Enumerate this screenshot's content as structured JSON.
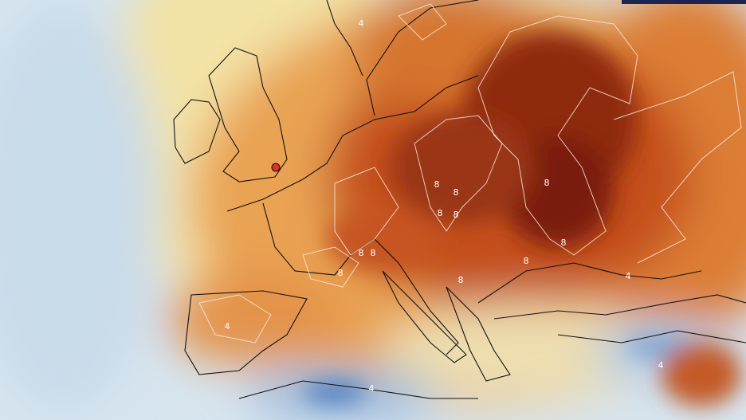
{
  "contour_labels": [
    "4",
    "8",
    "8",
    "8",
    "8",
    "8",
    "8",
    "8",
    "8",
    "8",
    "8",
    "8",
    "4",
    "4",
    "4",
    "4"
  ]
}
